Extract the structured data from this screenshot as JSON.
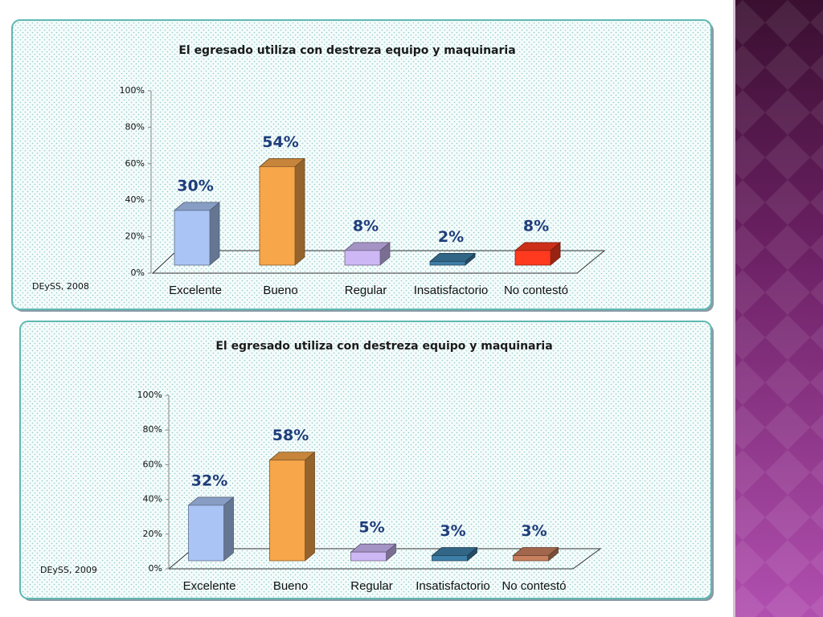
{
  "chart_data": [
    {
      "type": "bar3d",
      "title": "El egresado utiliza con destreza equipo y maquinaria",
      "categories": [
        "Excelente",
        "Bueno",
        "Regular",
        "Insatisfactorio",
        "No contestó"
      ],
      "values": [
        30,
        54,
        8,
        2,
        8
      ],
      "value_labels": [
        "30%",
        "54%",
        "8%",
        "2%",
        "8%"
      ],
      "colors": [
        "#a9c4f5",
        "#f7a64a",
        "#cdb8f5",
        "#3d7fa8",
        "#ff3a1e"
      ],
      "ylim": [
        0,
        100
      ],
      "yticks": [
        {
          "value": 0,
          "label": "0%"
        },
        {
          "value": 20,
          "label": "20%"
        },
        {
          "value": 40,
          "label": "40%"
        },
        {
          "value": 60,
          "label": "60%"
        },
        {
          "value": 80,
          "label": "80%"
        },
        {
          "value": 100,
          "label": "100%"
        }
      ],
      "source": "DEySS, 2008"
    },
    {
      "type": "bar3d",
      "title": "El egresado utiliza con destreza equipo y maquinaria",
      "categories": [
        "Excelente",
        "Bueno",
        "Regular",
        "Insatisfactorio",
        "No contestó"
      ],
      "values": [
        32,
        58,
        5,
        3,
        3
      ],
      "value_labels": [
        "32%",
        "58%",
        "5%",
        "3%",
        "3%"
      ],
      "colors": [
        "#a9c4f5",
        "#f7a64a",
        "#cdb8f5",
        "#3d7fa8",
        "#c9805f"
      ],
      "ylim": [
        0,
        100
      ],
      "yticks": [
        {
          "value": 0,
          "label": "0%"
        },
        {
          "value": 20,
          "label": "20%"
        },
        {
          "value": 40,
          "label": "40%"
        },
        {
          "value": 60,
          "label": "60%"
        },
        {
          "value": 80,
          "label": "80%"
        },
        {
          "value": 100,
          "label": "100%"
        }
      ],
      "source": "DEySS, 2009"
    }
  ]
}
